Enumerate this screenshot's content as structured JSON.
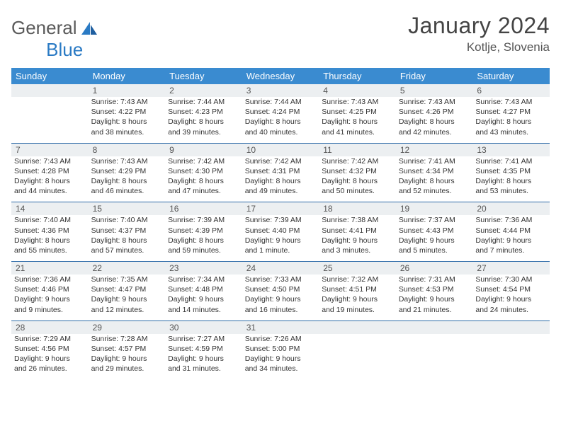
{
  "brand": {
    "word1": "General",
    "word2": "Blue"
  },
  "title": "January 2024",
  "location": "Kotlje, Slovenia",
  "colors": {
    "header_bg": "#3a8bd0",
    "header_text": "#ffffff",
    "daynum_bg": "#eceff1",
    "cell_border": "#2f6ca8",
    "logo_gray": "#5a5a5a",
    "logo_blue": "#2a7ac4",
    "text": "#333333"
  },
  "fonts": {
    "title_size_pt": 24,
    "location_size_pt": 13,
    "dow_size_pt": 10,
    "daynum_size_pt": 9,
    "body_size_pt": 8
  },
  "dow": [
    "Sunday",
    "Monday",
    "Tuesday",
    "Wednesday",
    "Thursday",
    "Friday",
    "Saturday"
  ],
  "weeks": [
    {
      "nums": [
        "",
        "1",
        "2",
        "3",
        "4",
        "5",
        "6"
      ],
      "cells": [
        {
          "empty": true
        },
        {
          "sunrise": "Sunrise: 7:43 AM",
          "sunset": "Sunset: 4:22 PM",
          "d1": "Daylight: 8 hours",
          "d2": "and 38 minutes."
        },
        {
          "sunrise": "Sunrise: 7:44 AM",
          "sunset": "Sunset: 4:23 PM",
          "d1": "Daylight: 8 hours",
          "d2": "and 39 minutes."
        },
        {
          "sunrise": "Sunrise: 7:44 AM",
          "sunset": "Sunset: 4:24 PM",
          "d1": "Daylight: 8 hours",
          "d2": "and 40 minutes."
        },
        {
          "sunrise": "Sunrise: 7:43 AM",
          "sunset": "Sunset: 4:25 PM",
          "d1": "Daylight: 8 hours",
          "d2": "and 41 minutes."
        },
        {
          "sunrise": "Sunrise: 7:43 AM",
          "sunset": "Sunset: 4:26 PM",
          "d1": "Daylight: 8 hours",
          "d2": "and 42 minutes."
        },
        {
          "sunrise": "Sunrise: 7:43 AM",
          "sunset": "Sunset: 4:27 PM",
          "d1": "Daylight: 8 hours",
          "d2": "and 43 minutes."
        }
      ]
    },
    {
      "nums": [
        "7",
        "8",
        "9",
        "10",
        "11",
        "12",
        "13"
      ],
      "cells": [
        {
          "sunrise": "Sunrise: 7:43 AM",
          "sunset": "Sunset: 4:28 PM",
          "d1": "Daylight: 8 hours",
          "d2": "and 44 minutes."
        },
        {
          "sunrise": "Sunrise: 7:43 AM",
          "sunset": "Sunset: 4:29 PM",
          "d1": "Daylight: 8 hours",
          "d2": "and 46 minutes."
        },
        {
          "sunrise": "Sunrise: 7:42 AM",
          "sunset": "Sunset: 4:30 PM",
          "d1": "Daylight: 8 hours",
          "d2": "and 47 minutes."
        },
        {
          "sunrise": "Sunrise: 7:42 AM",
          "sunset": "Sunset: 4:31 PM",
          "d1": "Daylight: 8 hours",
          "d2": "and 49 minutes."
        },
        {
          "sunrise": "Sunrise: 7:42 AM",
          "sunset": "Sunset: 4:32 PM",
          "d1": "Daylight: 8 hours",
          "d2": "and 50 minutes."
        },
        {
          "sunrise": "Sunrise: 7:41 AM",
          "sunset": "Sunset: 4:34 PM",
          "d1": "Daylight: 8 hours",
          "d2": "and 52 minutes."
        },
        {
          "sunrise": "Sunrise: 7:41 AM",
          "sunset": "Sunset: 4:35 PM",
          "d1": "Daylight: 8 hours",
          "d2": "and 53 minutes."
        }
      ]
    },
    {
      "nums": [
        "14",
        "15",
        "16",
        "17",
        "18",
        "19",
        "20"
      ],
      "cells": [
        {
          "sunrise": "Sunrise: 7:40 AM",
          "sunset": "Sunset: 4:36 PM",
          "d1": "Daylight: 8 hours",
          "d2": "and 55 minutes."
        },
        {
          "sunrise": "Sunrise: 7:40 AM",
          "sunset": "Sunset: 4:37 PM",
          "d1": "Daylight: 8 hours",
          "d2": "and 57 minutes."
        },
        {
          "sunrise": "Sunrise: 7:39 AM",
          "sunset": "Sunset: 4:39 PM",
          "d1": "Daylight: 8 hours",
          "d2": "and 59 minutes."
        },
        {
          "sunrise": "Sunrise: 7:39 AM",
          "sunset": "Sunset: 4:40 PM",
          "d1": "Daylight: 9 hours",
          "d2": "and 1 minute."
        },
        {
          "sunrise": "Sunrise: 7:38 AM",
          "sunset": "Sunset: 4:41 PM",
          "d1": "Daylight: 9 hours",
          "d2": "and 3 minutes."
        },
        {
          "sunrise": "Sunrise: 7:37 AM",
          "sunset": "Sunset: 4:43 PM",
          "d1": "Daylight: 9 hours",
          "d2": "and 5 minutes."
        },
        {
          "sunrise": "Sunrise: 7:36 AM",
          "sunset": "Sunset: 4:44 PM",
          "d1": "Daylight: 9 hours",
          "d2": "and 7 minutes."
        }
      ]
    },
    {
      "nums": [
        "21",
        "22",
        "23",
        "24",
        "25",
        "26",
        "27"
      ],
      "cells": [
        {
          "sunrise": "Sunrise: 7:36 AM",
          "sunset": "Sunset: 4:46 PM",
          "d1": "Daylight: 9 hours",
          "d2": "and 9 minutes."
        },
        {
          "sunrise": "Sunrise: 7:35 AM",
          "sunset": "Sunset: 4:47 PM",
          "d1": "Daylight: 9 hours",
          "d2": "and 12 minutes."
        },
        {
          "sunrise": "Sunrise: 7:34 AM",
          "sunset": "Sunset: 4:48 PM",
          "d1": "Daylight: 9 hours",
          "d2": "and 14 minutes."
        },
        {
          "sunrise": "Sunrise: 7:33 AM",
          "sunset": "Sunset: 4:50 PM",
          "d1": "Daylight: 9 hours",
          "d2": "and 16 minutes."
        },
        {
          "sunrise": "Sunrise: 7:32 AM",
          "sunset": "Sunset: 4:51 PM",
          "d1": "Daylight: 9 hours",
          "d2": "and 19 minutes."
        },
        {
          "sunrise": "Sunrise: 7:31 AM",
          "sunset": "Sunset: 4:53 PM",
          "d1": "Daylight: 9 hours",
          "d2": "and 21 minutes."
        },
        {
          "sunrise": "Sunrise: 7:30 AM",
          "sunset": "Sunset: 4:54 PM",
          "d1": "Daylight: 9 hours",
          "d2": "and 24 minutes."
        }
      ]
    },
    {
      "nums": [
        "28",
        "29",
        "30",
        "31",
        "",
        "",
        ""
      ],
      "cells": [
        {
          "sunrise": "Sunrise: 7:29 AM",
          "sunset": "Sunset: 4:56 PM",
          "d1": "Daylight: 9 hours",
          "d2": "and 26 minutes."
        },
        {
          "sunrise": "Sunrise: 7:28 AM",
          "sunset": "Sunset: 4:57 PM",
          "d1": "Daylight: 9 hours",
          "d2": "and 29 minutes."
        },
        {
          "sunrise": "Sunrise: 7:27 AM",
          "sunset": "Sunset: 4:59 PM",
          "d1": "Daylight: 9 hours",
          "d2": "and 31 minutes."
        },
        {
          "sunrise": "Sunrise: 7:26 AM",
          "sunset": "Sunset: 5:00 PM",
          "d1": "Daylight: 9 hours",
          "d2": "and 34 minutes."
        },
        {
          "empty": true
        },
        {
          "empty": true
        },
        {
          "empty": true
        }
      ]
    }
  ]
}
